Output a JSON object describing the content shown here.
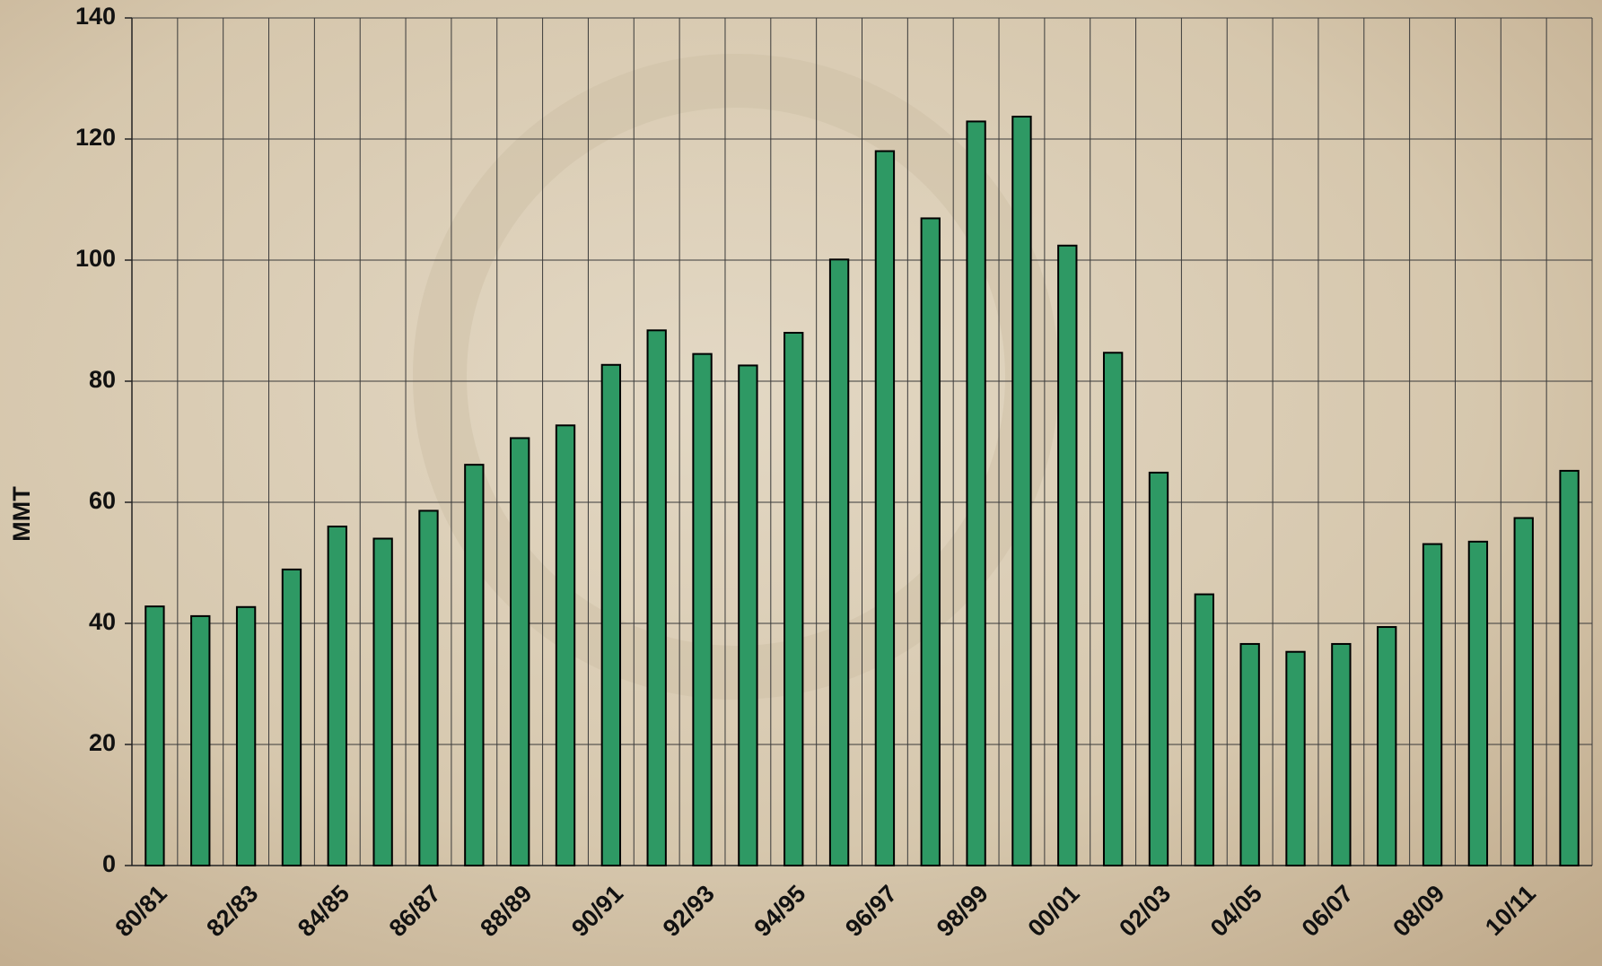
{
  "chart_data": {
    "type": "bar",
    "y_label": "MMT",
    "categories": [
      "80/81",
      null,
      "82/83",
      null,
      "84/85",
      null,
      "86/87",
      null,
      "88/89",
      null,
      "90/91",
      null,
      "92/93",
      null,
      "94/95",
      null,
      "96/97",
      null,
      "98/99",
      null,
      "00/01",
      null,
      "02/03",
      null,
      "04/05",
      null,
      "06/07",
      null,
      "08/09",
      null,
      "10/11",
      null
    ],
    "values": [
      42.8,
      41.2,
      42.7,
      48.9,
      56,
      54,
      58.6,
      66.2,
      70.6,
      72.7,
      82.7,
      88.4,
      84.5,
      82.6,
      88,
      100.1,
      118,
      106.9,
      122.9,
      123.7,
      102.4,
      84.7,
      64.9,
      44.8,
      36.6,
      35.3,
      36.6,
      39.4,
      53.1,
      53.5,
      57.4,
      65.2
    ],
    "color": "#2e9964",
    "ylim": [
      0,
      140
    ],
    "yticks": [
      0,
      20,
      40,
      60,
      80,
      100,
      120,
      140
    ],
    "grid": true
  }
}
